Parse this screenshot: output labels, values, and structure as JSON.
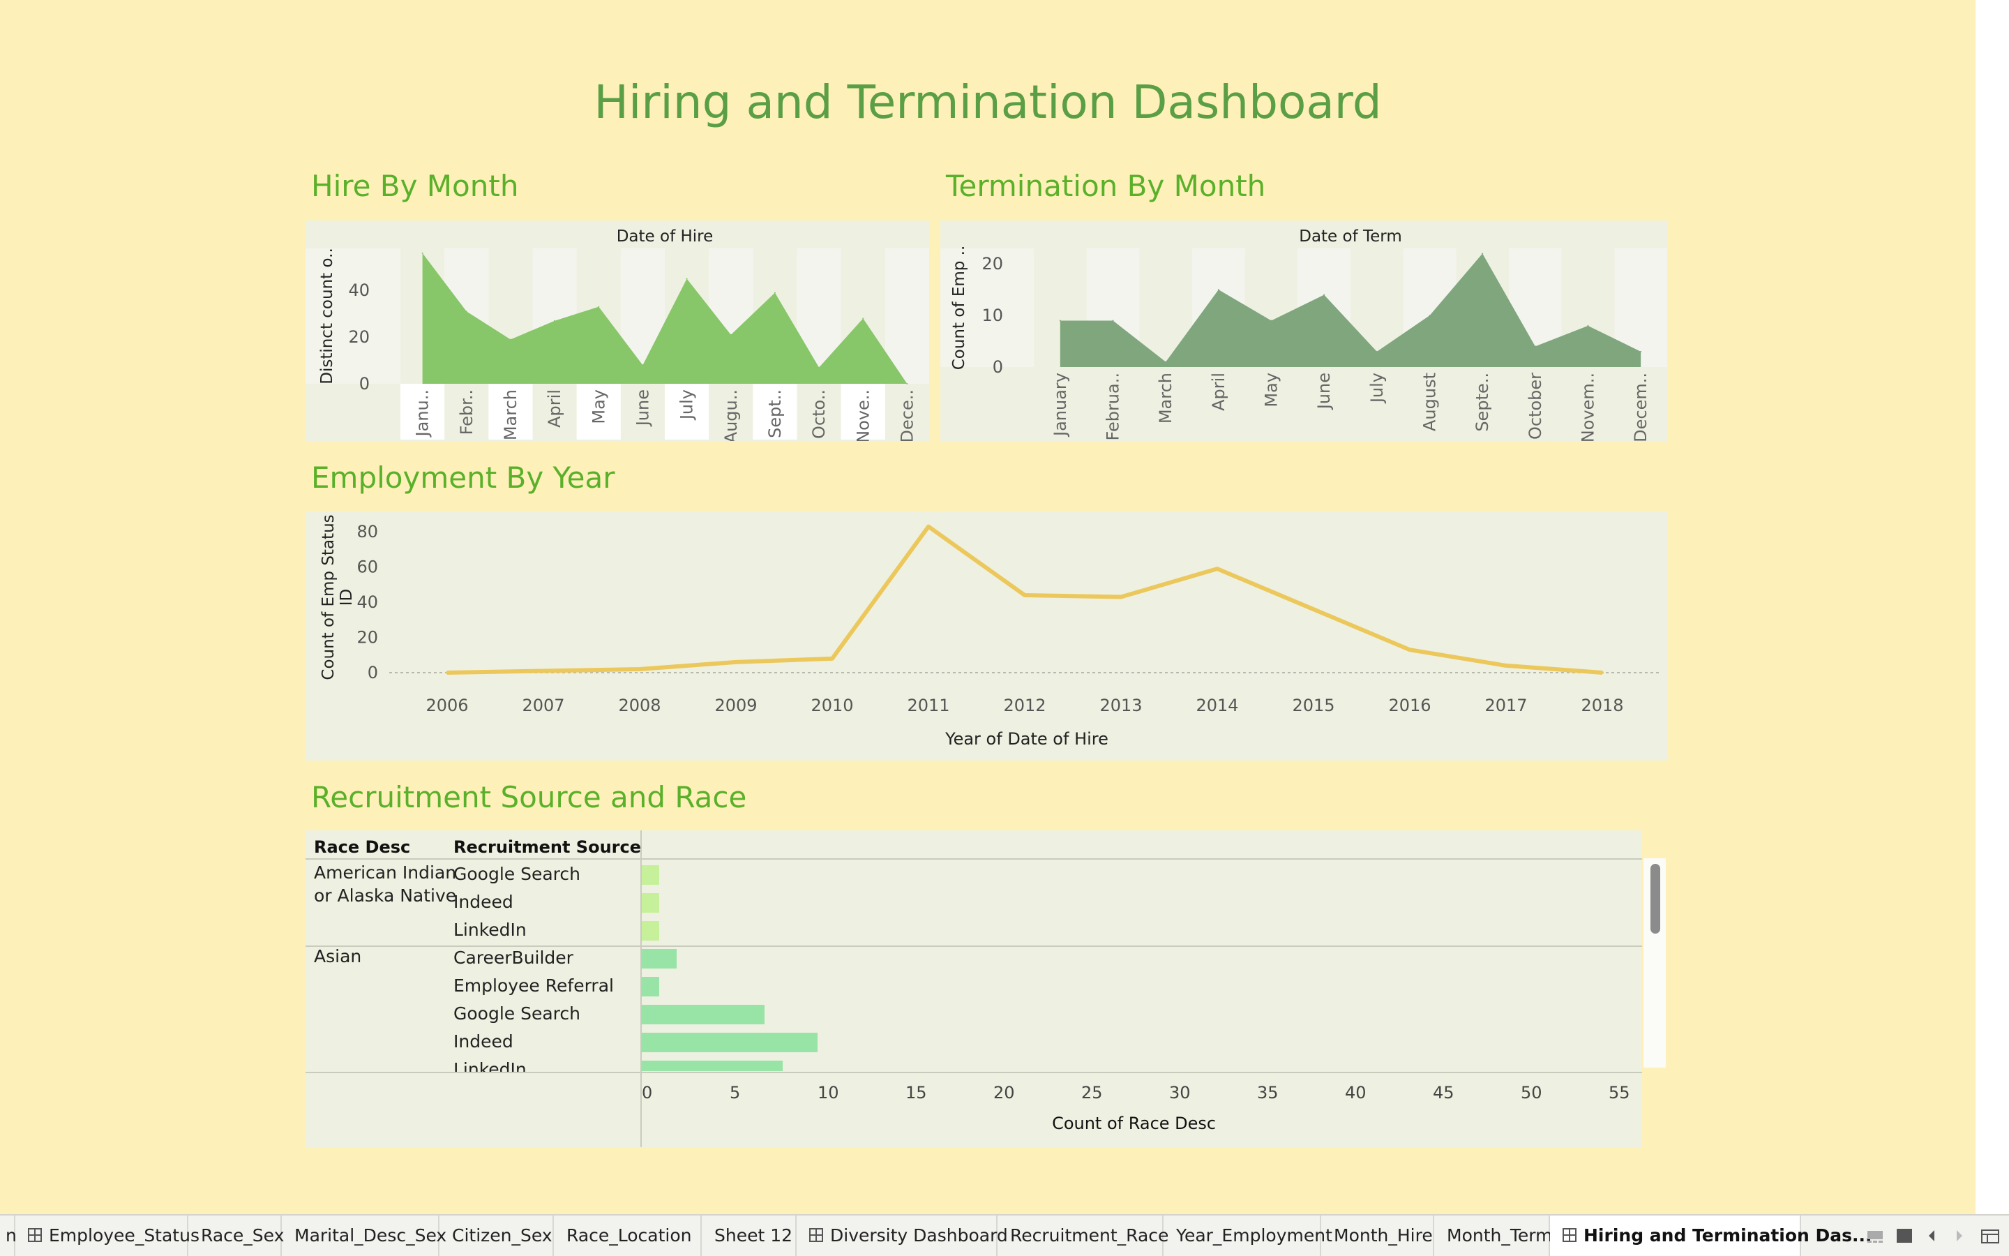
{
  "dashboard": {
    "title": "Hiring and Termination Dashboard",
    "sections": {
      "hire": "Hire By Month",
      "term": "Termination By Month",
      "employment": "Employment By Year",
      "recruitment": "Recruitment Source and Race"
    }
  },
  "colors": {
    "background": "#fdf1b9",
    "panel": "#eef1e1",
    "hire_area": "#88c66a",
    "term_area": "#7fa67d",
    "line": "#ecc85c",
    "bar_native": "#c7f09a",
    "bar_asian": "#98e3a6",
    "title_green": "#5a9e45"
  },
  "chart_data": [
    {
      "type": "area",
      "title": "Date of Hire",
      "ylabel": "Distinct count o..",
      "categories": [
        "Janu..",
        "Febr..",
        "March",
        "April",
        "May",
        "June",
        "July",
        "Augu..",
        "Sept..",
        "Octo..",
        "Nove..",
        "Dece.."
      ],
      "values": [
        56,
        31,
        19,
        27,
        33,
        8,
        45,
        21,
        39,
        7,
        28,
        0
      ],
      "yticks": [
        "0",
        "20",
        "40"
      ],
      "ylim": [
        0,
        58
      ]
    },
    {
      "type": "area",
      "title": "Date of Term",
      "ylabel": "Count of Emp ..",
      "categories": [
        "January",
        "Februa..",
        "March",
        "April",
        "May",
        "June",
        "July",
        "August",
        "Septe..",
        "October",
        "Novem..",
        "Decem.."
      ],
      "values": [
        9,
        9,
        1,
        15,
        9,
        14,
        3,
        10,
        22,
        4,
        8,
        3
      ],
      "yticks": [
        "0",
        "10",
        "20"
      ],
      "ylim": [
        0,
        23
      ]
    },
    {
      "type": "line",
      "xlabel": "Year of Date of Hire",
      "ylabel_lines": [
        "Count of Emp Status",
        "ID"
      ],
      "x": [
        "2006",
        "2007",
        "2008",
        "2009",
        "2010",
        "2011",
        "2012",
        "2013",
        "2014",
        "2015",
        "2016",
        "2017",
        "2018"
      ],
      "values": [
        0,
        1,
        2,
        6,
        8,
        83,
        44,
        43,
        59,
        36,
        13,
        4,
        0
      ],
      "yticks": [
        "0",
        "20",
        "40",
        "60",
        "80"
      ],
      "ylim": [
        0,
        88
      ]
    },
    {
      "type": "bar",
      "orientation": "horizontal",
      "xlabel": "Count of Race Desc",
      "headers": [
        "Race Desc",
        "Recruitment Source"
      ],
      "xticks": [
        "0",
        "5",
        "10",
        "15",
        "20",
        "25",
        "30",
        "35",
        "40",
        "45",
        "50",
        "55"
      ],
      "xlim": [
        0,
        57
      ],
      "groups": [
        {
          "race": [
            "American Indian",
            "or Alaska Native"
          ],
          "rows": [
            {
              "source": "Google Search",
              "value": 1
            },
            {
              "source": "Indeed",
              "value": 1
            },
            {
              "source": "LinkedIn",
              "value": 1
            }
          ]
        },
        {
          "race": [
            "Asian"
          ],
          "rows": [
            {
              "source": "CareerBuilder",
              "value": 2
            },
            {
              "source": "Employee Referral",
              "value": 1
            },
            {
              "source": "Google Search",
              "value": 7
            },
            {
              "source": "Indeed",
              "value": 10
            },
            {
              "source": "LinkedIn",
              "value": 8
            }
          ]
        }
      ]
    }
  ],
  "tabs": [
    {
      "label": "n",
      "grid": false,
      "active": false
    },
    {
      "label": "Employee_Status",
      "grid": true,
      "active": false
    },
    {
      "label": "Race_Sex",
      "grid": false,
      "active": false
    },
    {
      "label": "Marital_Desc_Sex",
      "grid": false,
      "active": false
    },
    {
      "label": "Citizen_Sex",
      "grid": false,
      "active": false
    },
    {
      "label": "Race_Location",
      "grid": false,
      "active": false
    },
    {
      "label": "Sheet 12",
      "grid": false,
      "active": false
    },
    {
      "label": "Diversity Dashboard",
      "grid": true,
      "active": false
    },
    {
      "label": "Recruitment_Race",
      "grid": false,
      "active": false
    },
    {
      "label": "Year_Employment",
      "grid": false,
      "active": false
    },
    {
      "label": "Month_Hire",
      "grid": false,
      "active": false
    },
    {
      "label": "Month_Term",
      "grid": false,
      "active": false
    },
    {
      "label": "Hiring and Termination Das...",
      "grid": true,
      "active": true
    }
  ],
  "tabbar_icons": [
    "filmstrip-icon",
    "grid-view-icon",
    "prev-tab-icon",
    "next-tab-icon",
    "new-sheet-icon"
  ]
}
